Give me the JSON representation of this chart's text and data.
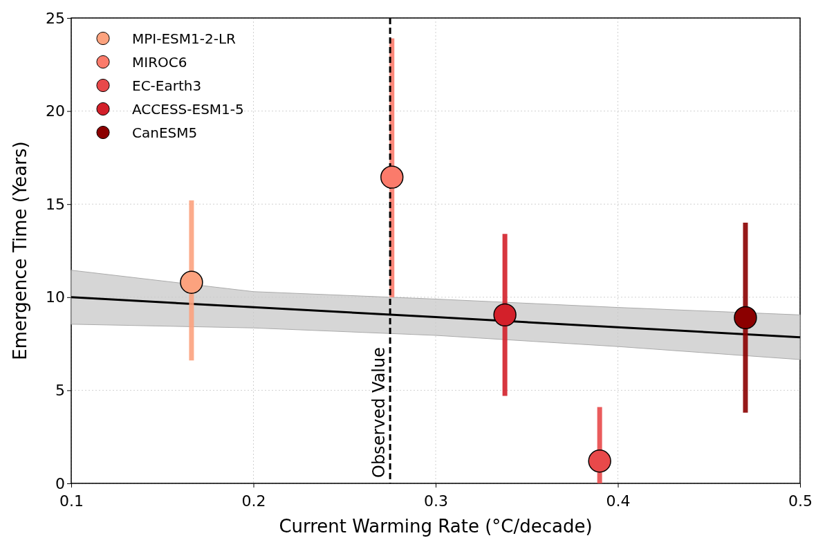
{
  "chart_data": {
    "type": "scatter",
    "xlabel": "Current Warming Rate (°C/decade)",
    "ylabel": "Emergence Time (Years)",
    "xlim": [
      0.1,
      0.5
    ],
    "xticks": [
      0.1,
      0.2,
      0.3,
      0.4,
      0.5
    ],
    "ylim": [
      0,
      25
    ],
    "yticks": [
      0,
      5,
      10,
      15,
      20,
      25
    ],
    "grid": true,
    "legend": "top left",
    "series": [
      {
        "type": "line",
        "color": "#000000",
        "x": [
          0.1,
          0.2,
          0.3,
          0.4,
          0.5
        ],
        "values": [
          10.0,
          9.46,
          8.93,
          8.39,
          7.85
        ],
        "lower": [
          8.55,
          8.35,
          7.95,
          7.35,
          6.65
        ],
        "upper": [
          11.45,
          10.3,
          9.9,
          9.45,
          9.05
        ]
      },
      {
        "name": "MPI-ESM1-2-LR",
        "marker": "circle",
        "color": "#fca27e",
        "x": [
          0.166
        ],
        "values": [
          10.8
        ],
        "errors": [
          [
            6.6,
            15.2
          ]
        ]
      },
      {
        "name": "MIROC6",
        "marker": "circle",
        "color": "#fb7b6b",
        "x": [
          0.276
        ],
        "values": [
          16.45
        ],
        "errors": [
          [
            10.0,
            23.9
          ]
        ]
      },
      {
        "name": "EC-Earth3",
        "marker": "circle",
        "color": "#e8494a",
        "x": [
          0.39
        ],
        "values": [
          1.2
        ],
        "errors": [
          [
            0,
            4.1
          ]
        ]
      },
      {
        "name": "ACCESS-ESM1-5",
        "marker": "circle",
        "color": "#d3202a",
        "x": [
          0.338
        ],
        "values": [
          9.05
        ],
        "errors": [
          [
            4.7,
            13.4
          ]
        ]
      },
      {
        "name": "CanESM5",
        "marker": "circle",
        "color": "#8b0000",
        "x": [
          0.47
        ],
        "values": [
          8.9
        ],
        "errors": [
          [
            3.8,
            14.0
          ]
        ]
      }
    ],
    "ref_lines": [
      {
        "axis": "x",
        "value": 0.275,
        "label": "Observed Value",
        "color": "#000000",
        "line_style": "dashed"
      }
    ]
  }
}
